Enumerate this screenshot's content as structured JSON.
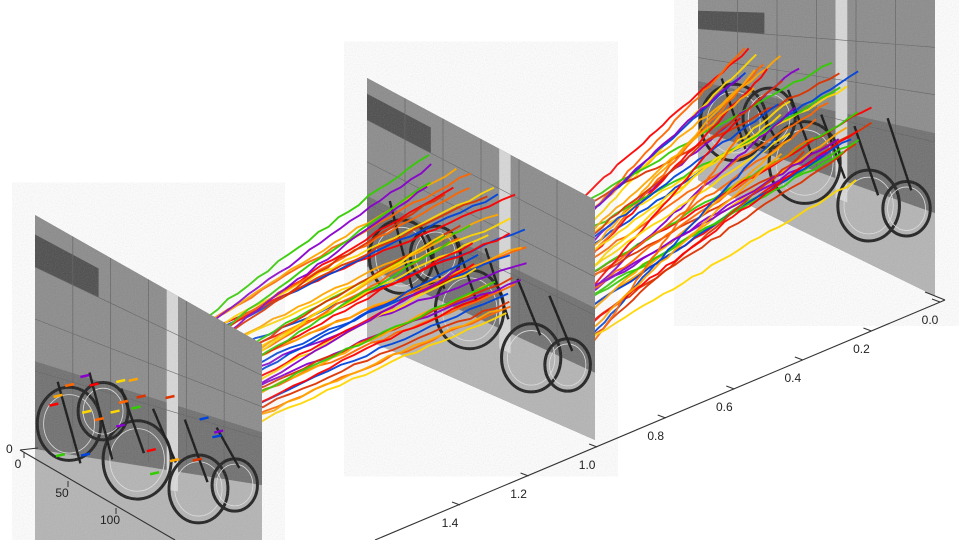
{
  "chart_data": {
    "type": "3d-trajectory",
    "title": "",
    "time_axis": {
      "label": "",
      "range": [
        0.0,
        1.4
      ],
      "ticks": [
        "0.0",
        "0.2",
        "0.4",
        "0.6",
        "0.8",
        "1.0",
        "1.2",
        "1.4"
      ]
    },
    "x_axis": {
      "label": "",
      "ticks": [
        "0",
        "50",
        "100"
      ]
    },
    "y_axis": {
      "label": "",
      "ticks": [
        "0"
      ]
    },
    "frames": [
      {
        "time": 0.0,
        "content": "grayscale photo of parked bicycles"
      },
      {
        "time": 0.7,
        "content": "grayscale photo of parked bicycles"
      },
      {
        "time": 1.4,
        "content": "grayscale photo of parked bicycles"
      }
    ],
    "track_colors": [
      "#ff0000",
      "#ff6600",
      "#ffa500",
      "#ffd700",
      "#33cc00",
      "#0044dd",
      "#8800cc",
      "#dd3300"
    ],
    "track_count": 44
  }
}
